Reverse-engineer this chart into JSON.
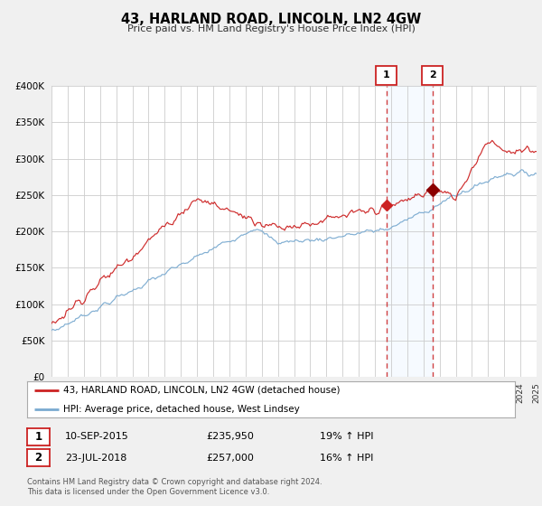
{
  "title": "43, HARLAND ROAD, LINCOLN, LN2 4GW",
  "subtitle": "Price paid vs. HM Land Registry's House Price Index (HPI)",
  "legend_house": "43, HARLAND ROAD, LINCOLN, LN2 4GW (detached house)",
  "legend_hpi": "HPI: Average price, detached house, West Lindsey",
  "transaction1_date": "10-SEP-2015",
  "transaction1_price": "£235,950",
  "transaction1_hpi": "19% ↑ HPI",
  "transaction2_date": "23-JUL-2018",
  "transaction2_price": "£257,000",
  "transaction2_hpi": "16% ↑ HPI",
  "footnote": "Contains HM Land Registry data © Crown copyright and database right 2024.\nThis data is licensed under the Open Government Licence v3.0.",
  "house_color": "#cc2222",
  "hpi_color": "#7aaad0",
  "background_color": "#f0f0f0",
  "plot_bg_color": "#ffffff",
  "grid_color": "#cccccc",
  "shade_color": "#ddeeff",
  "ylim": [
    0,
    400000
  ],
  "yticks": [
    0,
    50000,
    100000,
    150000,
    200000,
    250000,
    300000,
    350000,
    400000
  ],
  "year_start": 1995,
  "year_end": 2025,
  "transaction1_year": 2015.7,
  "transaction2_year": 2018.55,
  "t1_price": 235950,
  "t2_price": 257000
}
